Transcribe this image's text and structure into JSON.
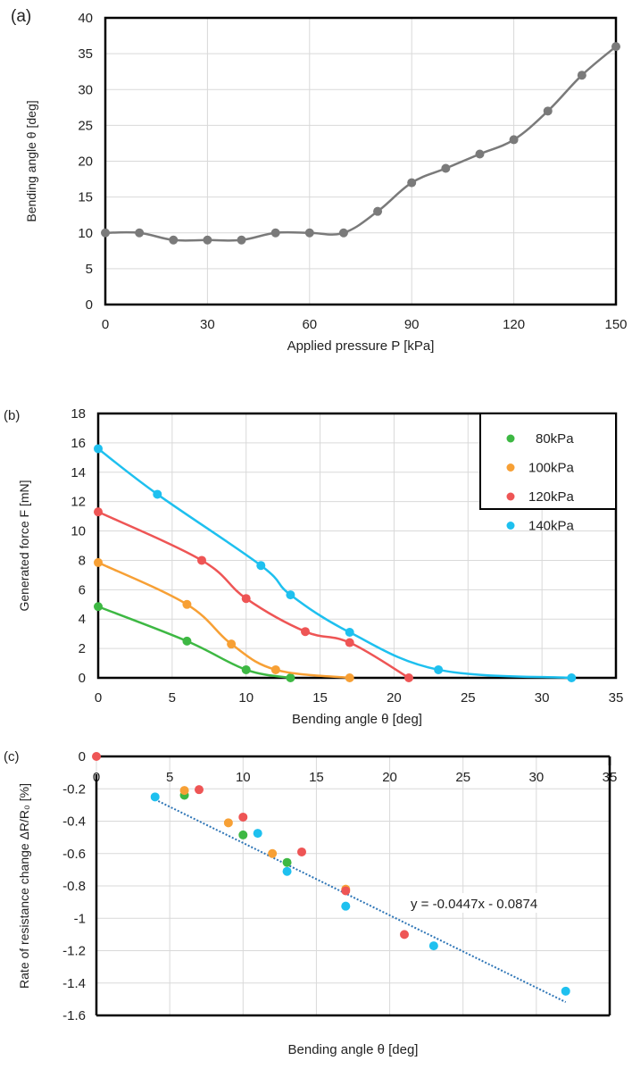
{
  "chart_data": [
    {
      "panel_label": "(a)",
      "type": "line",
      "smooth": true,
      "xlabel": "Applied pressure P [kPa]",
      "ylabel": "Bending angle θ [deg]",
      "xlim": [
        0,
        150
      ],
      "ylim": [
        0,
        40
      ],
      "xticks": [
        0,
        30,
        60,
        90,
        120,
        150
      ],
      "yticks": [
        0,
        5,
        10,
        15,
        20,
        25,
        30,
        35,
        40
      ],
      "grid": true,
      "series": [
        {
          "color": "#7a7a7a",
          "x": [
            0,
            10,
            20,
            30,
            40,
            50,
            60,
            70,
            80,
            90,
            100,
            110,
            120,
            130,
            140,
            150
          ],
          "y": [
            10,
            10,
            9,
            9,
            9,
            10,
            10,
            10,
            13,
            17,
            19,
            21,
            23,
            27,
            32,
            36
          ]
        }
      ]
    },
    {
      "panel_label": "(b)",
      "type": "line",
      "smooth": true,
      "xlabel": "Bending angle θ [deg]",
      "ylabel": "Generated force F [mN]",
      "xlim": [
        0,
        35
      ],
      "ylim": [
        0,
        18
      ],
      "xticks": [
        0,
        5,
        10,
        15,
        20,
        25,
        30,
        35
      ],
      "yticks": [
        0,
        2,
        4,
        6,
        8,
        10,
        12,
        14,
        16,
        18
      ],
      "grid": true,
      "legend": "top-right",
      "series": [
        {
          "name": "80kPa",
          "color": "#3db843",
          "x": [
            0,
            6,
            10,
            13
          ],
          "y": [
            4.85,
            2.5,
            0.55,
            0
          ]
        },
        {
          "name": "100kPa",
          "color": "#f7a035",
          "x": [
            0,
            6,
            9,
            12,
            17
          ],
          "y": [
            7.85,
            5,
            2.3,
            0.55,
            0
          ]
        },
        {
          "name": "120kPa",
          "color": "#ee5555",
          "x": [
            0,
            7,
            10,
            14,
            17,
            21
          ],
          "y": [
            11.3,
            8,
            5.4,
            3.15,
            2.4,
            0
          ]
        },
        {
          "name": "140kPa",
          "color": "#1ec0ef",
          "x": [
            0,
            4,
            11,
            13,
            17,
            23,
            32
          ],
          "y": [
            15.6,
            12.5,
            7.65,
            5.65,
            3.1,
            0.55,
            0
          ]
        }
      ]
    },
    {
      "panel_label": "(c)",
      "type": "scatter",
      "xlabel": "Bending angle θ [deg]",
      "ylabel": "Rate of resistance change ΔR/R₀ [%]",
      "xlim": [
        0,
        35
      ],
      "ylim": [
        -1.6,
        0
      ],
      "xticks": [
        0,
        5,
        10,
        15,
        20,
        25,
        30,
        35
      ],
      "yticks": [
        0,
        -0.2,
        -0.4,
        -0.6,
        -0.8,
        -1,
        -1.2,
        -1.4,
        -1.6
      ],
      "grid": true,
      "series": [
        {
          "color": "#3db843",
          "x": [
            6,
            10,
            13
          ],
          "y": [
            -0.24,
            -0.485,
            -0.655
          ]
        },
        {
          "color": "#f7a035",
          "x": [
            6,
            9,
            12,
            17
          ],
          "y": [
            -0.21,
            -0.41,
            -0.6,
            -0.82
          ]
        },
        {
          "color": "#ee5555",
          "x": [
            0,
            7,
            10,
            14,
            17,
            21
          ],
          "y": [
            0,
            -0.205,
            -0.375,
            -0.59,
            -0.83,
            -1.1
          ]
        },
        {
          "color": "#1ec0ef",
          "x": [
            4,
            11,
            13,
            17,
            23,
            32
          ],
          "y": [
            -0.25,
            -0.475,
            -0.71,
            -0.925,
            -1.17,
            -1.45
          ]
        }
      ],
      "trendline": {
        "equation": "y = -0.0447x - 0.0874",
        "slope": -0.0447,
        "intercept": -0.0874,
        "x_range": [
          4,
          32
        ],
        "color": "#2e75b6",
        "style": "dotted"
      }
    }
  ]
}
